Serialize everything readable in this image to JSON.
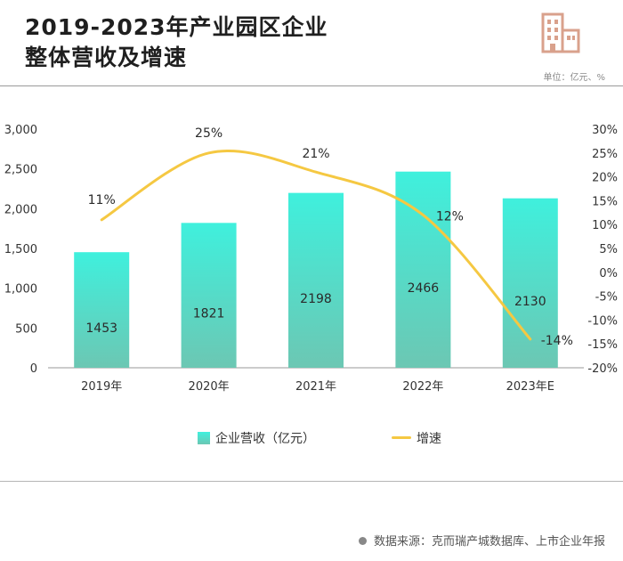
{
  "header": {
    "title_line1": "2019-2023年产业园区企业",
    "title_line2": "整体营收及增速",
    "unit": "单位：亿元、%"
  },
  "colors": {
    "bar_top": "#3ff0dd",
    "bar_bottom": "#6cc7b3",
    "line": "#f5c842",
    "logo": "#d9a18c"
  },
  "chart_data": {
    "type": "bar+line",
    "categories": [
      "2019年",
      "2020年",
      "2021年",
      "2022年",
      "2023年E"
    ],
    "series": [
      {
        "name": "企业营收（亿元）",
        "type": "bar",
        "axis": "left",
        "values": [
          1453,
          1821,
          2198,
          2466,
          2130
        ],
        "labels": [
          "1453",
          "1821",
          "2198",
          "2466",
          "2130"
        ]
      },
      {
        "name": "增速",
        "type": "line",
        "axis": "right",
        "values": [
          11,
          25,
          21,
          12,
          -14
        ],
        "labels": [
          "11%",
          "25%",
          "21%",
          "12%",
          "-14%"
        ]
      }
    ],
    "y_left": {
      "min": 0,
      "max": 3000,
      "ticks": [
        0,
        500,
        1000,
        1500,
        2000,
        2500,
        3000
      ],
      "tick_labels": [
        "0",
        "500",
        "1,000",
        "1,500",
        "2,000",
        "2,500",
        "3,000"
      ]
    },
    "y_right": {
      "min": -20,
      "max": 30,
      "ticks": [
        -20,
        -15,
        -10,
        -5,
        0,
        5,
        10,
        15,
        20,
        25,
        30
      ],
      "tick_labels": [
        "-20%",
        "-15%",
        "-10%",
        "-5%",
        "0%",
        "5%",
        "10%",
        "15%",
        "20%",
        "25%",
        "30%"
      ]
    },
    "legend_position": "bottom"
  },
  "legend": {
    "bar_label": "企业营收（亿元）",
    "line_label": "增速"
  },
  "footer": {
    "source": "数据来源：克而瑞产城数据库、上市企业年报"
  }
}
